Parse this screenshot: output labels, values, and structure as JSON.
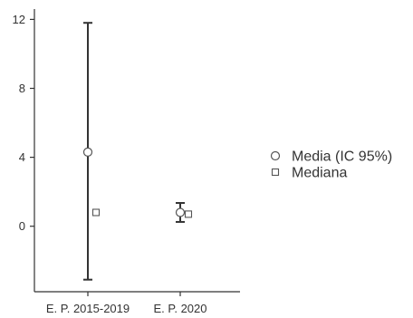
{
  "chart_data": {
    "type": "scatter",
    "categories": [
      "E. P. 2015-2019",
      "E. P. 2020"
    ],
    "yticks": [
      0,
      4,
      8,
      12
    ],
    "ylim": [
      -3.8,
      12.6
    ],
    "grid": false,
    "legend_position": "right",
    "series": [
      {
        "name": "Media (IC 95%)",
        "marker": "circle",
        "values": [
          4.3,
          0.8
        ],
        "ci_lower": [
          -3.1,
          0.25
        ],
        "ci_upper": [
          11.8,
          1.35
        ]
      },
      {
        "name": "Mediana",
        "marker": "square",
        "values": [
          0.8,
          0.7
        ]
      }
    ],
    "colors": {
      "axis": "#333333",
      "marker_stroke": "#555555",
      "marker_fill": "#ffffff",
      "errorbar": "#333333"
    }
  }
}
